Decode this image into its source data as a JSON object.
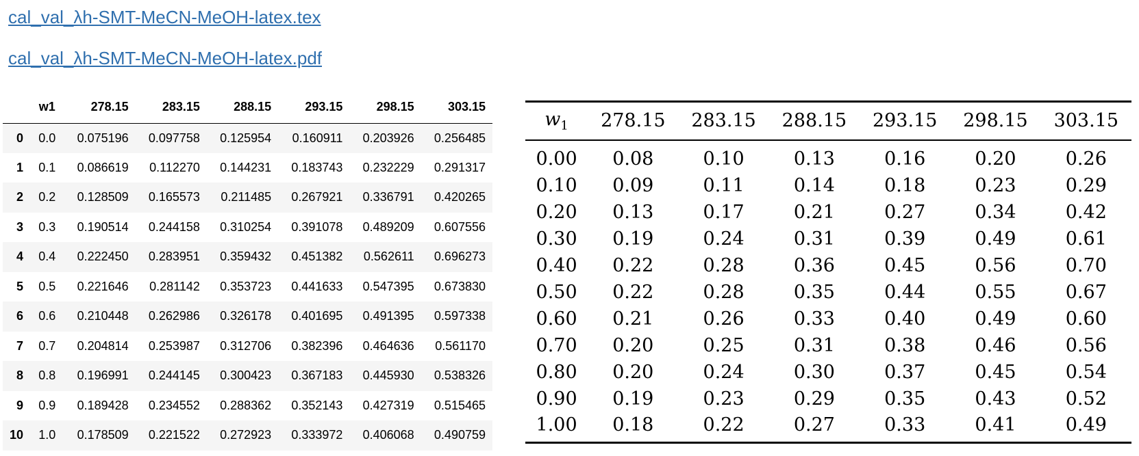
{
  "links": {
    "tex": "cal_val_λh-SMT-MeCN-MeOH-latex.tex",
    "pdf": "cal_val_λh-SMT-MeCN-MeOH-latex.pdf"
  },
  "dataframe": {
    "columns": [
      "w1",
      "278.15",
      "283.15",
      "288.15",
      "293.15",
      "298.15",
      "303.15"
    ],
    "rows": [
      {
        "index": "0",
        "values": [
          "0.0",
          "0.075196",
          "0.097758",
          "0.125954",
          "0.160911",
          "0.203926",
          "0.256485"
        ]
      },
      {
        "index": "1",
        "values": [
          "0.1",
          "0.086619",
          "0.112270",
          "0.144231",
          "0.183743",
          "0.232229",
          "0.291317"
        ]
      },
      {
        "index": "2",
        "values": [
          "0.2",
          "0.128509",
          "0.165573",
          "0.211485",
          "0.267921",
          "0.336791",
          "0.420265"
        ]
      },
      {
        "index": "3",
        "values": [
          "0.3",
          "0.190514",
          "0.244158",
          "0.310254",
          "0.391078",
          "0.489209",
          "0.607556"
        ]
      },
      {
        "index": "4",
        "values": [
          "0.4",
          "0.222450",
          "0.283951",
          "0.359432",
          "0.451382",
          "0.562611",
          "0.696273"
        ]
      },
      {
        "index": "5",
        "values": [
          "0.5",
          "0.221646",
          "0.281142",
          "0.353723",
          "0.441633",
          "0.547395",
          "0.673830"
        ]
      },
      {
        "index": "6",
        "values": [
          "0.6",
          "0.210448",
          "0.262986",
          "0.326178",
          "0.401695",
          "0.491395",
          "0.597338"
        ]
      },
      {
        "index": "7",
        "values": [
          "0.7",
          "0.204814",
          "0.253987",
          "0.312706",
          "0.382396",
          "0.464636",
          "0.561170"
        ]
      },
      {
        "index": "8",
        "values": [
          "0.8",
          "0.196991",
          "0.244145",
          "0.300423",
          "0.367183",
          "0.445930",
          "0.538326"
        ]
      },
      {
        "index": "9",
        "values": [
          "0.9",
          "0.189428",
          "0.234552",
          "0.288362",
          "0.352143",
          "0.427319",
          "0.515465"
        ]
      },
      {
        "index": "10",
        "values": [
          "1.0",
          "0.178509",
          "0.221522",
          "0.272923",
          "0.333972",
          "0.406068",
          "0.490759"
        ]
      }
    ]
  },
  "latex_table": {
    "header_symbol": "w",
    "header_subscript": "1",
    "columns": [
      "278.15",
      "283.15",
      "288.15",
      "293.15",
      "298.15",
      "303.15"
    ],
    "rows": [
      [
        "0.00",
        "0.08",
        "0.10",
        "0.13",
        "0.16",
        "0.20",
        "0.26"
      ],
      [
        "0.10",
        "0.09",
        "0.11",
        "0.14",
        "0.18",
        "0.23",
        "0.29"
      ],
      [
        "0.20",
        "0.13",
        "0.17",
        "0.21",
        "0.27",
        "0.34",
        "0.42"
      ],
      [
        "0.30",
        "0.19",
        "0.24",
        "0.31",
        "0.39",
        "0.49",
        "0.61"
      ],
      [
        "0.40",
        "0.22",
        "0.28",
        "0.36",
        "0.45",
        "0.56",
        "0.70"
      ],
      [
        "0.50",
        "0.22",
        "0.28",
        "0.35",
        "0.44",
        "0.55",
        "0.67"
      ],
      [
        "0.60",
        "0.21",
        "0.26",
        "0.33",
        "0.40",
        "0.49",
        "0.60"
      ],
      [
        "0.70",
        "0.20",
        "0.25",
        "0.31",
        "0.38",
        "0.46",
        "0.56"
      ],
      [
        "0.80",
        "0.20",
        "0.24",
        "0.30",
        "0.37",
        "0.45",
        "0.54"
      ],
      [
        "0.90",
        "0.19",
        "0.23",
        "0.29",
        "0.35",
        "0.43",
        "0.52"
      ],
      [
        "1.00",
        "0.18",
        "0.22",
        "0.27",
        "0.33",
        "0.41",
        "0.49"
      ]
    ]
  },
  "colors": {
    "link": "#2f6fae",
    "stripe": "#f5f5f5"
  }
}
